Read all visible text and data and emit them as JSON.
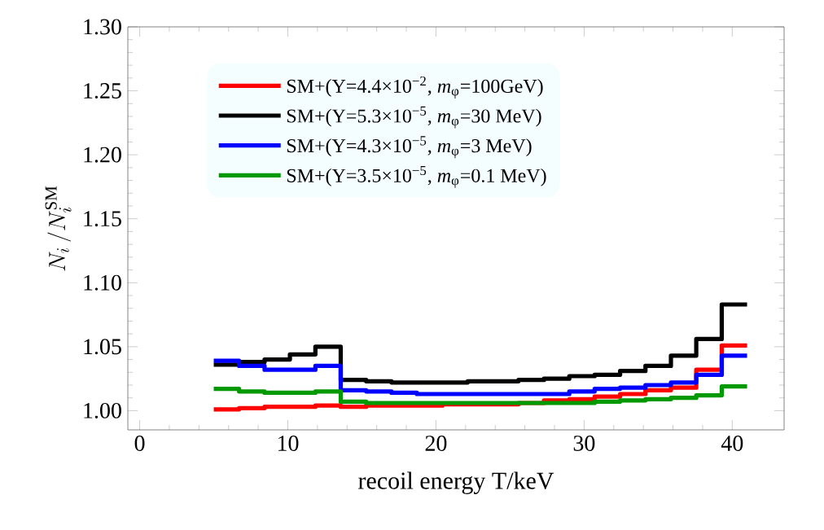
{
  "chart_data": {
    "type": "step",
    "xlabel": "recoil energy T/keV",
    "ylabel": "N_i\\,/N_i^{\\mathrm{SM}}",
    "x": [
      5.0,
      6.71,
      8.43,
      10.14,
      11.86,
      13.57,
      15.29,
      17.0,
      18.71,
      20.43,
      22.14,
      23.86,
      25.57,
      27.29,
      29.0,
      30.71,
      32.43,
      34.14,
      35.86,
      37.57,
      39.29,
      41.0
    ],
    "series": [
      {
        "name": "SM+(Y=4.4×10$^{−2}$, *m*$_{φ}$=100GeV)",
        "color": "#ff0000",
        "values": [
          1.001,
          1.002,
          1.003,
          1.003,
          1.004,
          1.003,
          1.004,
          1.004,
          1.004,
          1.005,
          1.005,
          1.005,
          1.006,
          1.008,
          1.009,
          1.011,
          1.013,
          1.016,
          1.018,
          1.032,
          1.051,
          1.051
        ]
      },
      {
        "name": "SM+(Y=5.3×10$^{−5}$, *m*$_{φ}$=30 MeV)",
        "color": "#000000",
        "values": [
          1.036,
          1.038,
          1.04,
          1.044,
          1.05,
          1.024,
          1.023,
          1.022,
          1.022,
          1.022,
          1.023,
          1.023,
          1.024,
          1.025,
          1.027,
          1.028,
          1.031,
          1.035,
          1.043,
          1.056,
          1.083,
          1.083
        ]
      },
      {
        "name": "SM+(Y=4.3×10$^{−5}$, *m*$_{φ}$=3 MeV)",
        "color": "#0000ff",
        "values": [
          1.039,
          1.035,
          1.032,
          1.032,
          1.035,
          1.016,
          1.015,
          1.014,
          1.013,
          1.013,
          1.013,
          1.013,
          1.013,
          1.013,
          1.015,
          1.017,
          1.018,
          1.02,
          1.022,
          1.028,
          1.043,
          1.043
        ]
      },
      {
        "name": "SM+(Y=3.5×10$^{−5}$, *m*$_{φ}$=0.1 MeV)",
        "color": "#009900",
        "values": [
          1.017,
          1.015,
          1.014,
          1.014,
          1.015,
          1.007,
          1.006,
          1.006,
          1.006,
          1.006,
          1.006,
          1.006,
          1.006,
          1.006,
          1.006,
          1.007,
          1.008,
          1.009,
          1.01,
          1.012,
          1.019,
          1.019
        ]
      }
    ],
    "xlim": [
      -0.8,
      43.5
    ],
    "ylim": [
      0.985,
      1.3
    ],
    "xticks": [
      0,
      10,
      20,
      30,
      40
    ],
    "yticks": [
      {
        "value": 1.0,
        "label": "1.00"
      },
      {
        "value": 1.05,
        "label": "1.05"
      },
      {
        "value": 1.1,
        "label": "1.10"
      },
      {
        "value": 1.15,
        "label": "1.15"
      },
      {
        "value": 1.2,
        "label": "1.20"
      },
      {
        "value": 1.25,
        "label": "1.25"
      },
      {
        "value": 1.3,
        "label": "1.30"
      }
    ],
    "legend": "top left",
    "grid": false,
    "line_style": "solid"
  }
}
